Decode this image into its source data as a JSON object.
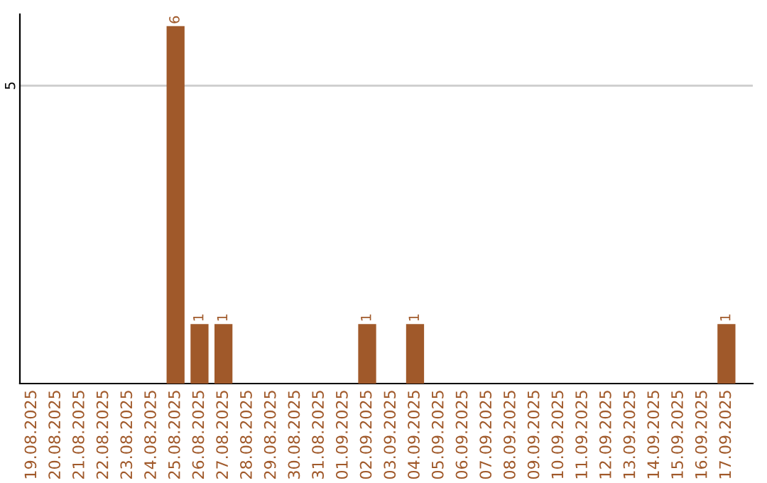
{
  "chart_data": {
    "type": "bar",
    "categories": [
      "19.08.2025",
      "20.08.2025",
      "21.08.2025",
      "22.08.2025",
      "23.08.2025",
      "24.08.2025",
      "25.08.2025",
      "26.08.2025",
      "27.08.2025",
      "28.08.2025",
      "29.08.2025",
      "30.08.2025",
      "31.08.2025",
      "01.09.2025",
      "02.09.2025",
      "03.09.2025",
      "04.09.2025",
      "05.09.2025",
      "06.09.2025",
      "07.09.2025",
      "08.09.2025",
      "09.09.2025",
      "10.09.2025",
      "11.09.2025",
      "12.09.2025",
      "13.09.2025",
      "14.09.2025",
      "15.09.2025",
      "16.09.2025",
      "17.09.2025"
    ],
    "values": [
      0,
      0,
      0,
      0,
      0,
      0,
      6,
      1,
      1,
      0,
      0,
      0,
      0,
      0,
      1,
      0,
      1,
      0,
      0,
      0,
      0,
      0,
      0,
      0,
      0,
      0,
      0,
      0,
      0,
      1
    ],
    "value_labels": [
      null,
      null,
      null,
      null,
      null,
      null,
      "6",
      "1",
      "1",
      null,
      null,
      null,
      null,
      null,
      "1",
      null,
      "1",
      null,
      null,
      null,
      null,
      null,
      null,
      null,
      null,
      null,
      null,
      null,
      null,
      "1"
    ],
    "color": "#a0592a",
    "ylim": [
      0,
      6.2
    ],
    "yticks": [
      5
    ],
    "grid": "y"
  }
}
